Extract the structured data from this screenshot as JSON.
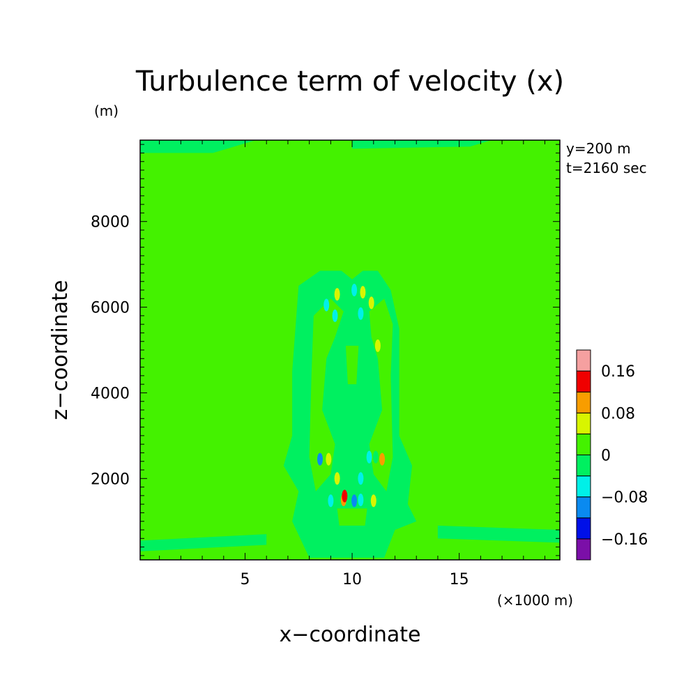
{
  "chart_data": {
    "type": "heatmap",
    "title": "Turbulence term of velocity (x)",
    "y_unit": "(m)",
    "xlabel": "x−coordinate",
    "ylabel": "z−coordinate",
    "x_unit": "(×1000 m)",
    "xlim": [
      0.1,
      19.7
    ],
    "ylim": [
      100,
      9900
    ],
    "x_ticks": [
      "5",
      "10",
      "15"
    ],
    "x_tick_values": [
      5,
      10,
      15
    ],
    "y_ticks": [
      "2000",
      "4000",
      "6000",
      "8000"
    ],
    "y_tick_values": [
      2000,
      4000,
      6000,
      8000
    ],
    "annotations": [
      "y=200 m",
      "t=2160 sec"
    ],
    "colorbar": {
      "levels": [
        -0.2,
        -0.16,
        -0.12,
        -0.08,
        -0.04,
        0,
        0.04,
        0.08,
        0.12,
        0.16,
        0.2
      ],
      "colors": [
        "#7b0fa8",
        "#0010e8",
        "#0a8af0",
        "#00f0e8",
        "#00f060",
        "#44f200",
        "#d8f500",
        "#f89d00",
        "#f00000",
        "#f5a0a0"
      ],
      "tick_labels": [
        "−0.16",
        "−0.08",
        "0",
        "0.08",
        "0.16"
      ],
      "tick_values": [
        -0.16,
        -0.08,
        0,
        0.08,
        0.16
      ]
    },
    "background_value": 0.02,
    "regions": [
      {
        "value": -0.02,
        "poly": [
          [
            0.1,
            9900
          ],
          [
            5.5,
            9900
          ],
          [
            3.5,
            9600
          ],
          [
            0.1,
            9600
          ]
        ]
      },
      {
        "value": -0.02,
        "poly": [
          [
            10,
            9900
          ],
          [
            16.5,
            9900
          ],
          [
            15.5,
            9750
          ],
          [
            10,
            9700
          ]
        ]
      },
      {
        "value": -0.02,
        "poly": [
          [
            0.1,
            550
          ],
          [
            6,
            700
          ],
          [
            6,
            450
          ],
          [
            0.1,
            300
          ]
        ]
      },
      {
        "value": -0.02,
        "poly": [
          [
            14,
            900
          ],
          [
            19.7,
            800
          ],
          [
            19.7,
            500
          ],
          [
            14,
            600
          ]
        ]
      },
      {
        "value": -0.02,
        "poly": [
          [
            7.5,
            6500
          ],
          [
            8.5,
            6850
          ],
          [
            9.5,
            6850
          ],
          [
            10,
            6650
          ],
          [
            10.5,
            6850
          ],
          [
            11.2,
            6850
          ],
          [
            11.8,
            6400
          ],
          [
            12.2,
            5500
          ],
          [
            12.2,
            3000
          ],
          [
            12.8,
            2300
          ],
          [
            12.6,
            1400
          ],
          [
            13,
            1000
          ],
          [
            12,
            800
          ],
          [
            11.5,
            150
          ],
          [
            8,
            150
          ],
          [
            7.2,
            1000
          ],
          [
            7.5,
            1700
          ],
          [
            6.8,
            2300
          ],
          [
            7.2,
            3000
          ],
          [
            7.2,
            4500
          ]
        ]
      },
      {
        "value": 0.02,
        "poly": [
          [
            8.2,
            5800
          ],
          [
            9,
            6200
          ],
          [
            9.6,
            5900
          ],
          [
            9.2,
            5300
          ],
          [
            8.8,
            4800
          ],
          [
            8.6,
            3600
          ],
          [
            9.2,
            2800
          ],
          [
            9,
            2100
          ],
          [
            8.3,
            1700
          ],
          [
            8,
            2500
          ],
          [
            8.1,
            4400
          ]
        ]
      },
      {
        "value": 0.02,
        "poly": [
          [
            10.8,
            5900
          ],
          [
            11.5,
            6200
          ],
          [
            11.9,
            5600
          ],
          [
            11.8,
            4400
          ],
          [
            11.9,
            2500
          ],
          [
            11.6,
            1700
          ],
          [
            11,
            2100
          ],
          [
            10.8,
            2800
          ],
          [
            11.4,
            3600
          ],
          [
            11.2,
            4800
          ],
          [
            10.9,
            5300
          ]
        ]
      },
      {
        "value": 0.02,
        "poly": [
          [
            9.7,
            5100
          ],
          [
            10.3,
            5100
          ],
          [
            10.2,
            4200
          ],
          [
            9.8,
            4200
          ]
        ]
      },
      {
        "value": 0.02,
        "poly": [
          [
            9.3,
            1300
          ],
          [
            10.7,
            1300
          ],
          [
            10.6,
            900
          ],
          [
            9.4,
            900
          ]
        ]
      }
    ],
    "spots": [
      {
        "x": 9.6,
        "z": 1500,
        "value": 0.1
      },
      {
        "x": 10.4,
        "z": 1500,
        "value": -0.08
      },
      {
        "x": 9.0,
        "z": 1480,
        "value": -0.06
      },
      {
        "x": 11.0,
        "z": 1480,
        "value": 0.06
      },
      {
        "x": 9.65,
        "z": 1590,
        "value": 0.14
      },
      {
        "x": 10.1,
        "z": 1480,
        "value": -0.12
      },
      {
        "x": 9.3,
        "z": 2000,
        "value": 0.06
      },
      {
        "x": 10.4,
        "z": 2000,
        "value": -0.06
      },
      {
        "x": 8.5,
        "z": 2450,
        "value": -0.1
      },
      {
        "x": 8.9,
        "z": 2450,
        "value": 0.06
      },
      {
        "x": 11.4,
        "z": 2450,
        "value": 0.1
      },
      {
        "x": 10.8,
        "z": 2500,
        "value": -0.06
      },
      {
        "x": 11.1,
        "z": 2500,
        "value": -0.04
      },
      {
        "x": 8.8,
        "z": 6050,
        "value": -0.06
      },
      {
        "x": 9.3,
        "z": 6300,
        "value": 0.06
      },
      {
        "x": 10.1,
        "z": 6400,
        "value": -0.06
      },
      {
        "x": 10.5,
        "z": 6350,
        "value": 0.06
      },
      {
        "x": 9.2,
        "z": 5800,
        "value": -0.05
      },
      {
        "x": 10.4,
        "z": 5850,
        "value": -0.05
      },
      {
        "x": 10.9,
        "z": 6100,
        "value": 0.07
      },
      {
        "x": 9.7,
        "z": 6150,
        "value": -0.04
      },
      {
        "x": 11.2,
        "z": 5100,
        "value": 0.05
      }
    ]
  }
}
